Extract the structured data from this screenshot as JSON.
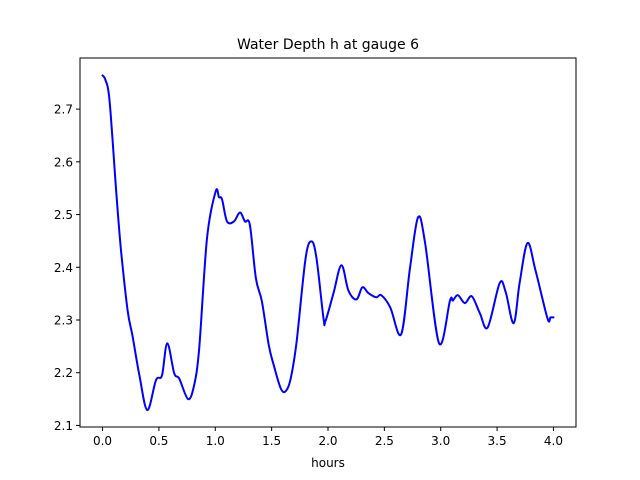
{
  "chart_data": {
    "type": "line",
    "title": "Water Depth h at gauge 6",
    "xlabel": "hours",
    "ylabel": "",
    "xlim": [
      -0.2,
      4.2
    ],
    "ylim": [
      2.097,
      2.797
    ],
    "xticks": [
      0.0,
      0.5,
      1.0,
      1.5,
      2.0,
      2.5,
      3.0,
      3.5,
      4.0
    ],
    "xtick_labels": [
      "0.0",
      "0.5",
      "1.0",
      "1.5",
      "2.0",
      "2.5",
      "3.0",
      "3.5",
      "4.0"
    ],
    "yticks": [
      2.1,
      2.2,
      2.3,
      2.4,
      2.5,
      2.6,
      2.7
    ],
    "ytick_labels": [
      "2.1",
      "2.2",
      "2.3",
      "2.4",
      "2.5",
      "2.6",
      "2.7"
    ],
    "grid": false,
    "series": [
      {
        "name": "h",
        "color": "#0000ff",
        "x": [
          0.0,
          0.026,
          0.062,
          0.121,
          0.165,
          0.223,
          0.265,
          0.327,
          0.397,
          0.474,
          0.527,
          0.574,
          0.636,
          0.68,
          0.759,
          0.812,
          0.857,
          0.927,
          1.004,
          1.033,
          1.06,
          1.104,
          1.166,
          1.219,
          1.263,
          1.307,
          1.36,
          1.413,
          1.475,
          1.519,
          1.581,
          1.625,
          1.669,
          1.722,
          1.801,
          1.854,
          1.898,
          1.96,
          1.978,
          2.049,
          2.119,
          2.181,
          2.252,
          2.305,
          2.358,
          2.428,
          2.472,
          2.552,
          2.649,
          2.728,
          2.799,
          2.861,
          2.985,
          3.082,
          3.108,
          3.152,
          3.214,
          3.276,
          3.347,
          3.417,
          3.523,
          3.576,
          3.647,
          3.7,
          3.77,
          3.841,
          3.947,
          3.974,
          4.0
        ],
        "y": [
          2.764,
          2.755,
          2.717,
          2.544,
          2.43,
          2.317,
          2.271,
          2.195,
          2.129,
          2.186,
          2.195,
          2.256,
          2.199,
          2.189,
          2.15,
          2.176,
          2.246,
          2.455,
          2.544,
          2.533,
          2.529,
          2.487,
          2.487,
          2.504,
          2.487,
          2.48,
          2.379,
          2.336,
          2.252,
          2.214,
          2.17,
          2.165,
          2.189,
          2.26,
          2.417,
          2.449,
          2.417,
          2.303,
          2.298,
          2.351,
          2.404,
          2.356,
          2.339,
          2.362,
          2.351,
          2.343,
          2.347,
          2.324,
          2.273,
          2.4,
          2.495,
          2.446,
          2.256,
          2.337,
          2.337,
          2.347,
          2.332,
          2.345,
          2.313,
          2.286,
          2.37,
          2.353,
          2.294,
          2.37,
          2.446,
          2.394,
          2.303,
          2.305,
          2.305
        ]
      }
    ]
  }
}
